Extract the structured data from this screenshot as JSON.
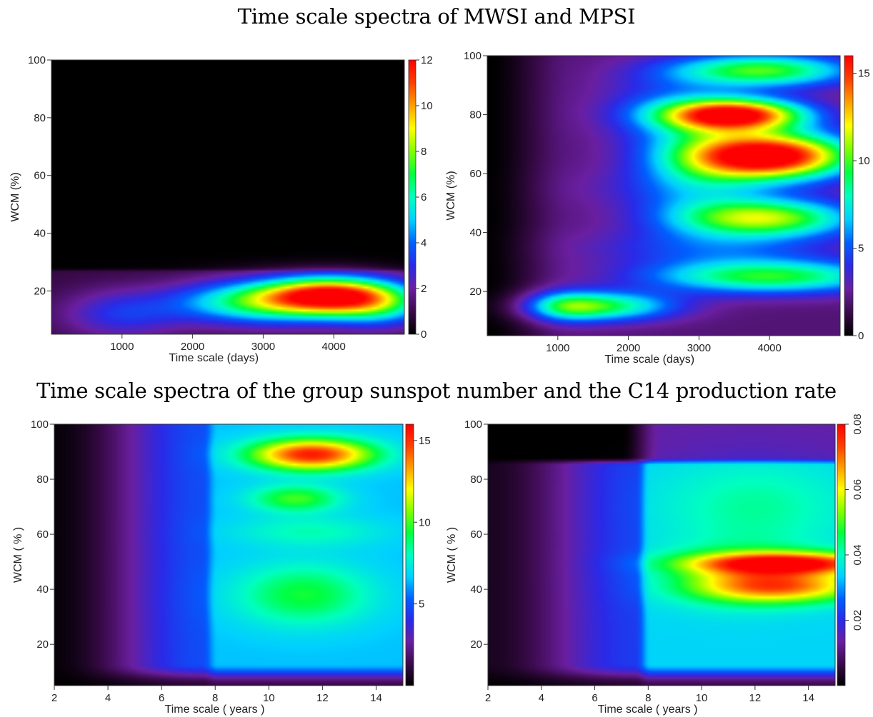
{
  "titles": {
    "top": "Time scale spectra of MWSI and MPSI",
    "bottom": "Time scale spectra of the group sunspot number and the C14 production rate"
  },
  "colormap": [
    "#000000",
    "#3a0a4a",
    "#6a1fa0",
    "#2a2ae8",
    "#0060ff",
    "#00d0ff",
    "#00ffc0",
    "#00ff40",
    "#80ff00",
    "#ffff00",
    "#ffa000",
    "#ff4000",
    "#ff0000"
  ],
  "chart_data": [
    {
      "type": "heatmap",
      "id": "mwsi",
      "xlabel": "Time scale (days)",
      "ylabel": "WCM (%)",
      "xlim": [
        0,
        5000
      ],
      "ylim": [
        5,
        100
      ],
      "xticks": [
        1000,
        2000,
        3000,
        4000
      ],
      "yticks": [
        20,
        40,
        60,
        80,
        100
      ],
      "colorbar": {
        "min": 0,
        "max": 12,
        "ticks": [
          0,
          2,
          4,
          6,
          8,
          10,
          12
        ],
        "tick_labels": [
          "0",
          "2",
          "4",
          "6",
          "8",
          "10",
          "12"
        ],
        "orient": "horizontal"
      },
      "background": 0.0,
      "bands": [
        {
          "y0": 5,
          "y1": 28,
          "x0": 0,
          "x1": 5000,
          "value": 0.9,
          "edge": 0.5
        }
      ],
      "blobs": [
        {
          "x": 1000,
          "y": 12,
          "sx": 600,
          "sy": 6,
          "value": 2.2
        },
        {
          "x": 2600,
          "y": 17,
          "sx": 700,
          "sy": 5,
          "value": 3.0
        },
        {
          "x": 3950,
          "y": 18.5,
          "sx": 700,
          "sy": 4.5,
          "value": 10.6
        },
        {
          "x": 3200,
          "y": 14,
          "sx": 900,
          "sy": 5,
          "value": 2.5
        },
        {
          "x": 4700,
          "y": 14,
          "sx": 500,
          "sy": 5,
          "value": 3.0
        }
      ]
    },
    {
      "type": "heatmap",
      "id": "mpsi",
      "xlabel": "Time scale (days)",
      "ylabel": "WCM (%)",
      "xlim": [
        0,
        5000
      ],
      "ylim": [
        5,
        100
      ],
      "xticks": [
        1000,
        2000,
        3000,
        4000
      ],
      "yticks": [
        20,
        40,
        60,
        80,
        100
      ],
      "colorbar": {
        "min": 0,
        "max": 16,
        "ticks": [
          0,
          5,
          10,
          15
        ],
        "tick_labels": [
          "0",
          "5",
          "10",
          "15"
        ],
        "orient": "horizontal"
      },
      "background": 1.0,
      "ramp": {
        "x0": 0,
        "x1": 1200,
        "v0": 0.0,
        "v1": 2.0
      },
      "blobs": [
        {
          "x": 4000,
          "y": 66,
          "sx": 800,
          "sy": 5.5,
          "value": 15.5
        },
        {
          "x": 3500,
          "y": 80,
          "sx": 700,
          "sy": 3.8,
          "value": 14.0
        },
        {
          "x": 3900,
          "y": 95,
          "sx": 900,
          "sy": 4,
          "value": 8.0
        },
        {
          "x": 3900,
          "y": 45,
          "sx": 900,
          "sy": 4.5,
          "value": 9.0
        },
        {
          "x": 4000,
          "y": 25,
          "sx": 1200,
          "sy": 4,
          "value": 7.5
        },
        {
          "x": 1700,
          "y": 15,
          "sx": 700,
          "sy": 3.5,
          "value": 6.5
        },
        {
          "x": 1100,
          "y": 15,
          "sx": 400,
          "sy": 3.5,
          "value": 4.0
        },
        {
          "x": 3000,
          "y": 65,
          "sx": 600,
          "sy": 12,
          "value": 3.0
        },
        {
          "x": 2500,
          "y": 82,
          "sx": 700,
          "sy": 10,
          "value": 2.2
        },
        {
          "x": 3200,
          "y": 35,
          "sx": 1200,
          "sy": 5,
          "value": 2.8
        },
        {
          "x": 2800,
          "y": 55,
          "sx": 1000,
          "sy": 6,
          "value": 1.8
        }
      ]
    },
    {
      "type": "heatmap",
      "id": "group-sunspot",
      "xlabel": "Time scale ( years )",
      "ylabel": "WCM ( % )",
      "xlim": [
        2,
        15
      ],
      "ylim": [
        5,
        100
      ],
      "xticks": [
        2,
        4,
        6,
        8,
        10,
        12,
        14
      ],
      "yticks": [
        20,
        40,
        60,
        80,
        100
      ],
      "colorbar": {
        "min": 0,
        "max": 16,
        "ticks": [
          5,
          10,
          15
        ],
        "tick_labels": [
          "5",
          "10",
          "15"
        ],
        "orient": "horizontal"
      },
      "background": 0.0,
      "ramp": {
        "x0": 2,
        "x1": 7.5,
        "v0": 0.2,
        "v1": 4.8
      },
      "plateau": {
        "x0": 7.5,
        "x1": 15,
        "value": 6.5
      },
      "blobs": [
        {
          "x": 11.6,
          "y": 89,
          "sx": 1.6,
          "sy": 4,
          "value": 9.0
        },
        {
          "x": 11.0,
          "y": 73,
          "sx": 1.2,
          "sy": 3.5,
          "value": 3.5
        },
        {
          "x": 11.3,
          "y": 38,
          "sx": 1.8,
          "sy": 8,
          "value": 3.0
        },
        {
          "x": 11.5,
          "y": 61,
          "sx": 2,
          "sy": 4,
          "value": 1.6
        }
      ],
      "bottom_fade": {
        "y": 5,
        "width": 8
      }
    },
    {
      "type": "heatmap",
      "id": "c14",
      "xlabel": "Time scale ( years )",
      "ylabel": "WCM ( % )",
      "xlim": [
        2,
        15
      ],
      "ylim": [
        5,
        100
      ],
      "xticks": [
        2,
        4,
        6,
        8,
        10,
        12,
        14
      ],
      "yticks": [
        20,
        40,
        60,
        80,
        100
      ],
      "colorbar": {
        "min": 0,
        "max": 0.08,
        "ticks": [
          0.02,
          0.04,
          0.06,
          0.08
        ],
        "tick_labels": [
          "0.02",
          "0.04",
          "0.06",
          "0.08"
        ],
        "orient": "vertical"
      },
      "background": 0.0,
      "ramp": {
        "x0": 2,
        "x1": 7.5,
        "v0": 0.003,
        "v1": 0.022
      },
      "plateau": {
        "x0": 7.5,
        "x1": 15,
        "value": 0.034
      },
      "blobs": [
        {
          "x": 13.2,
          "y": 49.5,
          "sx": 2.5,
          "sy": 2.8,
          "value": 0.045
        },
        {
          "x": 13.0,
          "y": 41,
          "sx": 2.2,
          "sy": 4,
          "value": 0.032
        },
        {
          "x": 11.5,
          "y": 45,
          "sx": 2.0,
          "sy": 8,
          "value": 0.012
        },
        {
          "x": 12,
          "y": 70,
          "sx": 2.5,
          "sy": 12,
          "value": 0.008
        }
      ],
      "top_band": {
        "y0": 87,
        "y1": 100,
        "value": 0.014
      },
      "bottom_fade": {
        "y": 5,
        "width": 8
      }
    }
  ]
}
